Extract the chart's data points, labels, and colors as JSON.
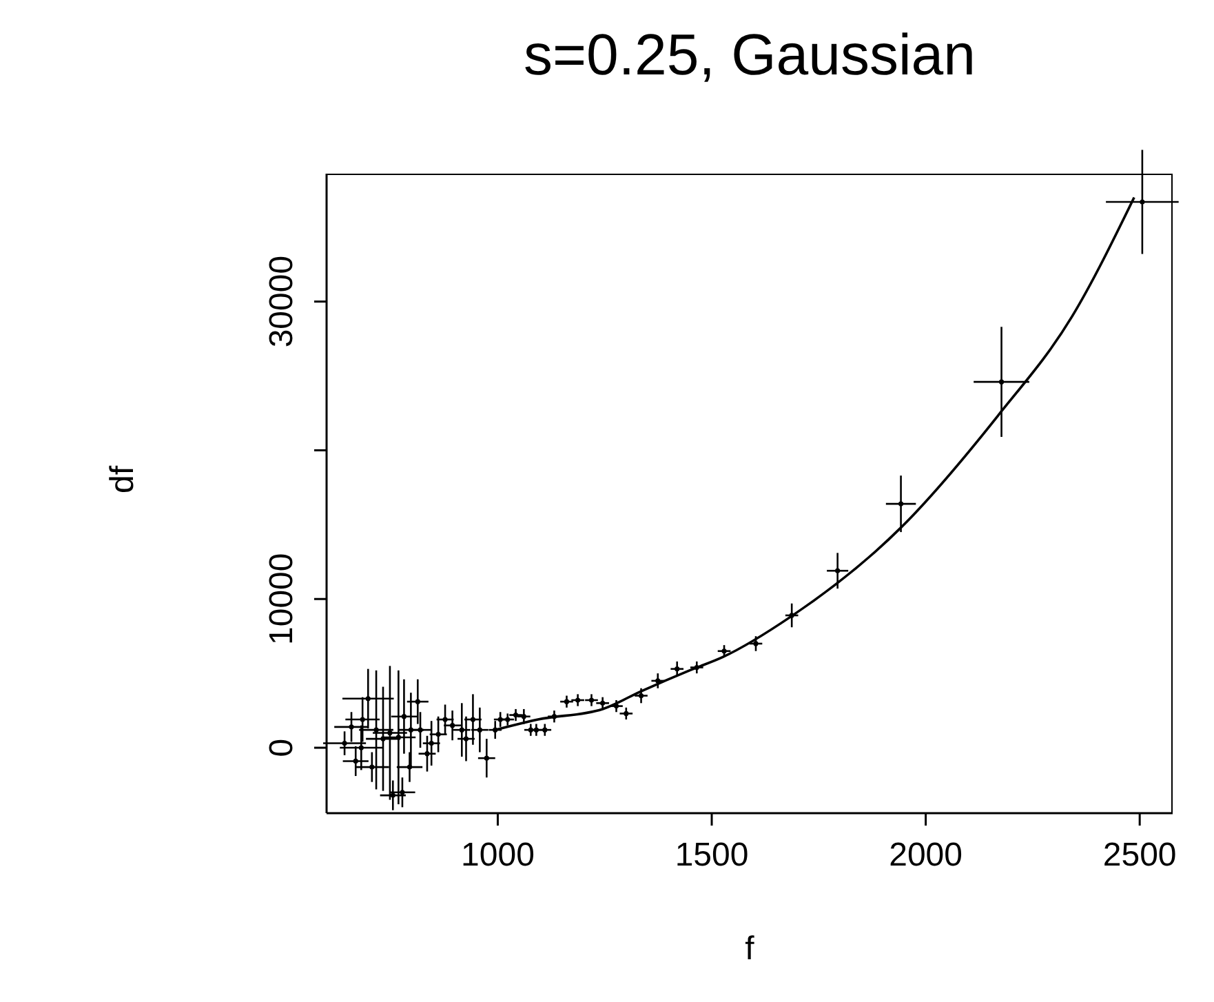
{
  "chart_data": {
    "type": "scatter",
    "title": "s=0.25, Gaussian",
    "xlabel": "f",
    "ylabel": "df",
    "xlim": [
      600,
      2577
    ],
    "ylim": [
      -4400,
      38600
    ],
    "xticks": [
      1000,
      1500,
      2000,
      2500
    ],
    "yticks": [
      0,
      10000,
      {
        "value": 20000,
        "label": null
      },
      30000
    ],
    "series": [
      {
        "color": "#000000",
        "marker": "circle",
        "x": [
          642,
          658,
          668,
          681,
          684,
          697,
          706,
          716,
          732,
          748,
          755,
          768,
          777,
          781,
          794,
          797,
          813,
          819,
          835,
          845,
          861,
          877,
          894,
          916,
          926,
          942,
          958,
          974,
          994,
          1006,
          1023,
          1042,
          1061,
          1077,
          1090,
          1110,
          1132,
          1161,
          1187,
          1219,
          1245,
          1277,
          1300,
          1335,
          1374,
          1419,
          1465,
          1529,
          1603,
          1687,
          1794,
          1942,
          2177,
          2506
        ],
        "values": [
          300,
          1400,
          -900,
          0,
          1900,
          3300,
          -1300,
          1200,
          600,
          1000,
          -3200,
          700,
          -3000,
          2100,
          -1300,
          1200,
          3100,
          1200,
          -400,
          300,
          900,
          1900,
          1500,
          1200,
          600,
          1900,
          1200,
          -700,
          1200,
          1900,
          1900,
          2200,
          2100,
          1200,
          1200,
          1200,
          2100,
          3100,
          3200,
          3200,
          3000,
          2800,
          2300,
          3500,
          4500,
          5300,
          5400,
          6500,
          7000,
          8900,
          11900,
          16400,
          24600,
          36700
        ],
        "errors": [
          800,
          1000,
          1000,
          1500,
          1500,
          2000,
          1000,
          4000,
          3500,
          4500,
          1000,
          4500,
          1000,
          2500,
          1000,
          2500,
          1500,
          1200,
          1200,
          1500,
          1200,
          1000,
          1000,
          1800,
          1500,
          1700,
          1500,
          1300,
          600,
          500,
          400,
          400,
          500,
          400,
          400,
          400,
          400,
          400,
          400,
          400,
          400,
          400,
          400,
          500,
          500,
          500,
          400,
          400,
          500,
          800,
          1200,
          1900,
          3700,
          3500
        ],
        "xerrors": [
          50,
          40,
          30,
          50,
          40,
          60,
          40,
          40,
          40,
          40,
          30,
          40,
          30,
          30,
          30,
          30,
          25,
          25,
          20,
          20,
          20,
          20,
          20,
          20,
          20,
          20,
          20,
          20,
          15,
          15,
          15,
          15,
          15,
          15,
          15,
          15,
          15,
          15,
          15,
          15,
          15,
          15,
          15,
          15,
          15,
          15,
          15,
          15,
          15,
          15,
          25,
          35,
          65,
          85
        ]
      },
      {
        "type": "line",
        "color": "#000000",
        "x": [
          994,
          1094,
          1245,
          1335,
          1448,
          1526,
          1684,
          1942,
          2168,
          2342,
          2487
        ],
        "values": [
          1200,
          1900,
          2600,
          3800,
          5200,
          6100,
          8800,
          14800,
          22300,
          29000,
          37000
        ]
      }
    ]
  }
}
